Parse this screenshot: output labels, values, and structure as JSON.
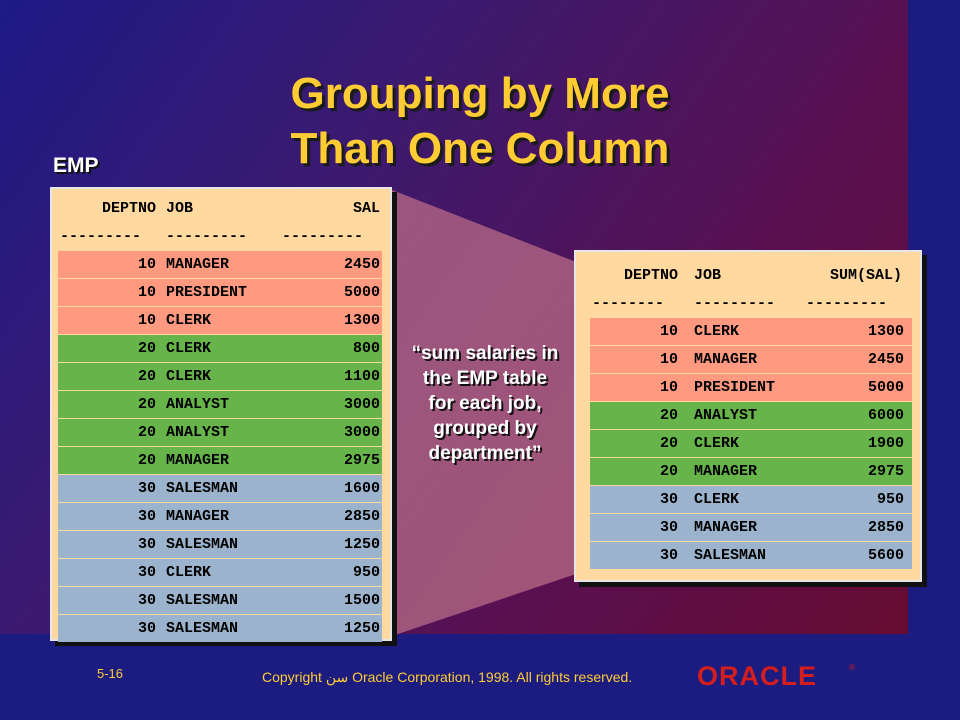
{
  "slide": {
    "title_line1": "Grouping by More",
    "title_line2": "Than One Column",
    "table_label": "EMP",
    "quote_lines": [
      "“sum salaries in",
      "the EMP table",
      "for each job,",
      "grouped by",
      "department”"
    ],
    "slide_number": "5-16",
    "copyright": "Copyright سن Oracle Corporation, 1998. All rights reserved.",
    "logo_text": "ORACLE",
    "logo_mark": "®"
  },
  "colors": {
    "title": "#ffcc33",
    "red_group": "#ff9980",
    "green_group": "#66b44a",
    "blue_group": "#9bb3cc",
    "panel_bg": "#ffd9a0",
    "logo": "#d41e1e"
  },
  "emp_table": {
    "headers": [
      "DEPTNO",
      "JOB",
      "SAL"
    ],
    "separators": [
      "---------",
      "---------",
      "---------"
    ],
    "rows": [
      {
        "deptno": "10",
        "job": "MANAGER",
        "sal": "2450",
        "group": "red"
      },
      {
        "deptno": "10",
        "job": "PRESIDENT",
        "sal": "5000",
        "group": "red"
      },
      {
        "deptno": "10",
        "job": "CLERK",
        "sal": "1300",
        "group": "red"
      },
      {
        "deptno": "20",
        "job": "CLERK",
        "sal": "800",
        "group": "green"
      },
      {
        "deptno": "20",
        "job": "CLERK",
        "sal": "1100",
        "group": "green"
      },
      {
        "deptno": "20",
        "job": "ANALYST",
        "sal": "3000",
        "group": "green"
      },
      {
        "deptno": "20",
        "job": "ANALYST",
        "sal": "3000",
        "group": "green"
      },
      {
        "deptno": "20",
        "job": "MANAGER",
        "sal": "2975",
        "group": "green"
      },
      {
        "deptno": "30",
        "job": "SALESMAN",
        "sal": "1600",
        "group": "blue"
      },
      {
        "deptno": "30",
        "job": "MANAGER",
        "sal": "2850",
        "group": "blue"
      },
      {
        "deptno": "30",
        "job": "SALESMAN",
        "sal": "1250",
        "group": "blue"
      },
      {
        "deptno": "30",
        "job": "CLERK",
        "sal": "950",
        "group": "blue"
      },
      {
        "deptno": "30",
        "job": "SALESMAN",
        "sal": "1500",
        "group": "blue"
      },
      {
        "deptno": "30",
        "job": "SALESMAN",
        "sal": "1250",
        "group": "blue"
      }
    ]
  },
  "result_table": {
    "headers": [
      "DEPTNO",
      "JOB",
      "SUM(SAL)"
    ],
    "separators": [
      "--------",
      "---------",
      "---------"
    ],
    "rows": [
      {
        "deptno": "10",
        "job": "CLERK",
        "sum": "1300",
        "group": "red"
      },
      {
        "deptno": "10",
        "job": "MANAGER",
        "sum": "2450",
        "group": "red"
      },
      {
        "deptno": "10",
        "job": "PRESIDENT",
        "sum": "5000",
        "group": "red"
      },
      {
        "deptno": "20",
        "job": "ANALYST",
        "sum": "6000",
        "group": "green"
      },
      {
        "deptno": "20",
        "job": "CLERK",
        "sum": "1900",
        "group": "green"
      },
      {
        "deptno": "20",
        "job": "MANAGER",
        "sum": "2975",
        "group": "green"
      },
      {
        "deptno": "30",
        "job": "CLERK",
        "sum": "950",
        "group": "blue"
      },
      {
        "deptno": "30",
        "job": "MANAGER",
        "sum": "2850",
        "group": "blue"
      },
      {
        "deptno": "30",
        "job": "SALESMAN",
        "sum": "5600",
        "group": "blue"
      }
    ]
  }
}
